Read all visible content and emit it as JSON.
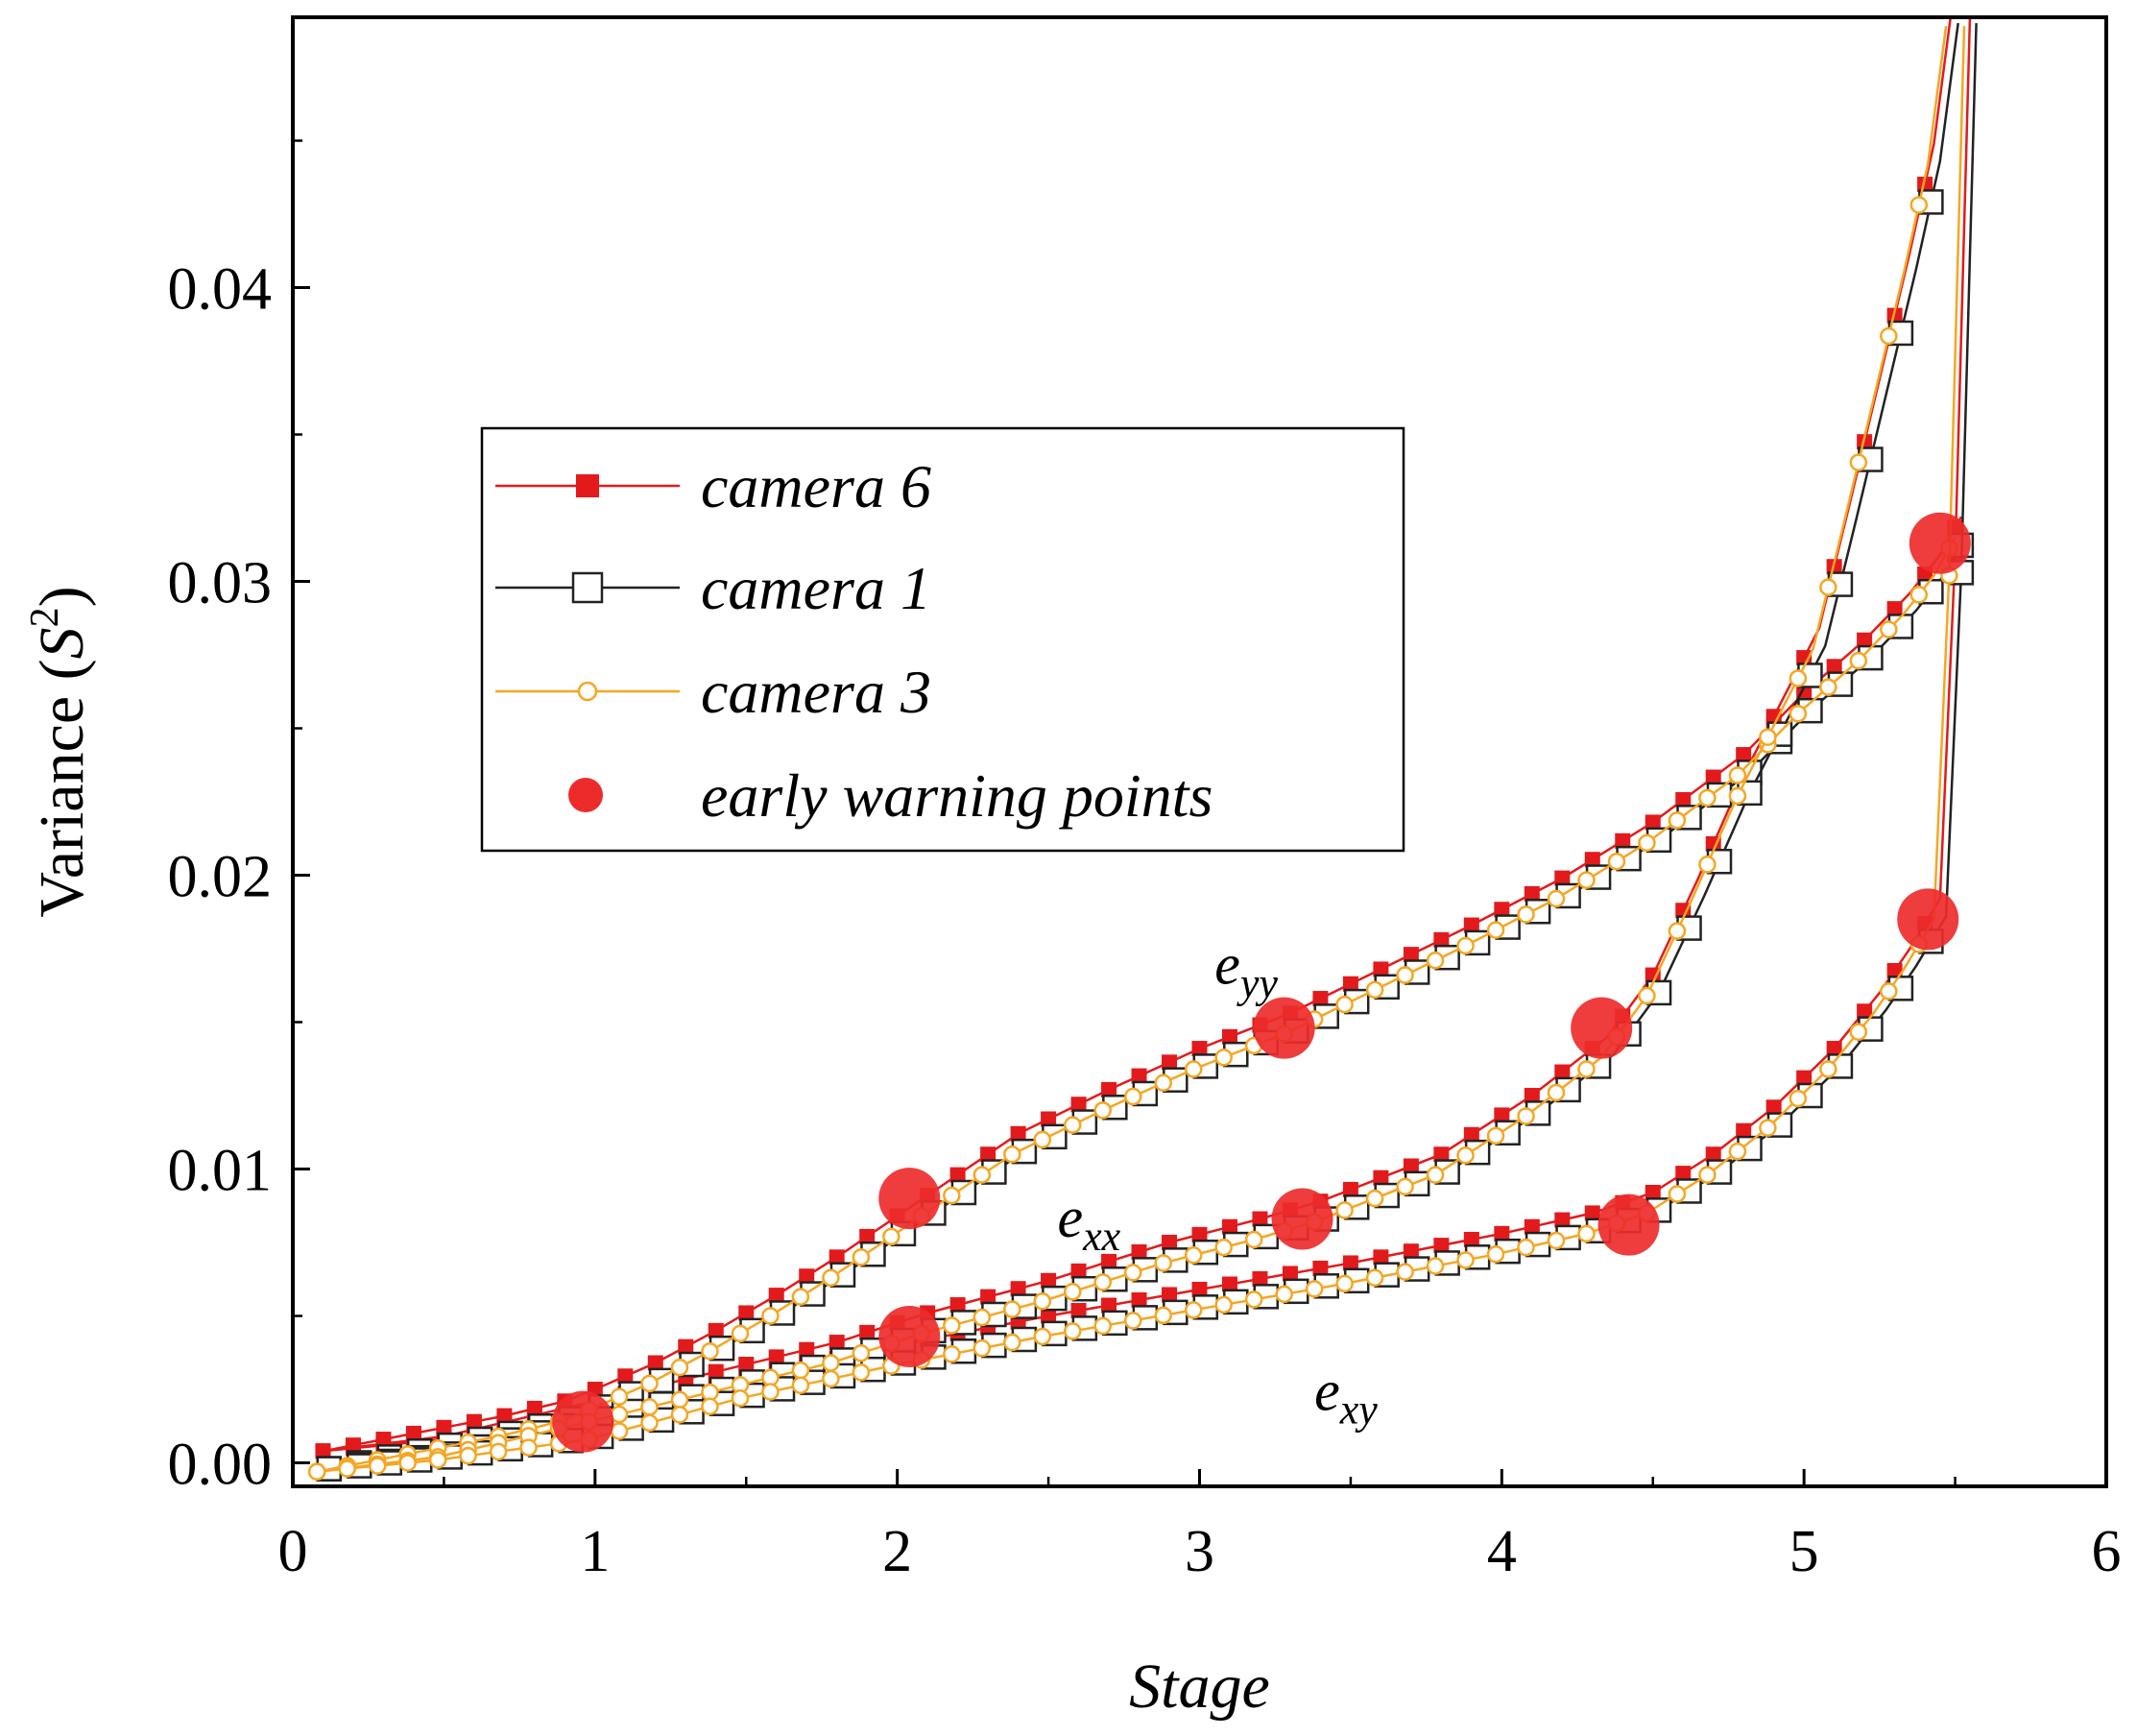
{
  "chart_data": {
    "type": "line",
    "xlabel": "Stage",
    "ylabel_prefix": "Variance (",
    "ylabel_symbol": "S",
    "ylabel_sup": "2",
    "ylabel_suffix": ")",
    "xlim": [
      0,
      6
    ],
    "ylim": [
      -0.0008,
      0.0492
    ],
    "x_ticks": [
      0,
      1,
      2,
      3,
      4,
      5,
      6
    ],
    "x_tick_labels": [
      "0",
      "1",
      "2",
      "3",
      "4",
      "5",
      "6"
    ],
    "y_ticks": [
      0,
      0.01,
      0.02,
      0.03,
      0.04
    ],
    "y_tick_labels": [
      "0.00",
      "0.01",
      "0.02",
      "0.03",
      "0.04"
    ],
    "grid": false,
    "legend_position": "upper-left",
    "annotations": [
      {
        "base": "e",
        "sub": "yy",
        "x": 3.05,
        "y": 0.0163
      },
      {
        "base": "e",
        "sub": "xx",
        "x": 2.53,
        "y": 0.0077
      },
      {
        "base": "e",
        "sub": "xy",
        "x": 3.38,
        "y": 0.0018
      }
    ],
    "series": [
      {
        "name": "camera 6",
        "color": "#e31a1c",
        "marker": "filled-square"
      },
      {
        "name": "camera 1",
        "color": "#222222",
        "marker": "open-square"
      },
      {
        "name": "camera 3",
        "color": "#f5a623",
        "marker": "open-circle"
      },
      {
        "name": "early warning points",
        "color": "#ee2b2b",
        "marker": "large-circle"
      }
    ],
    "curves": {
      "eyy": [
        [
          0.1,
          0
        ],
        [
          0.3,
          0.0004
        ],
        [
          0.5,
          0.0008
        ],
        [
          0.7,
          0.0012
        ],
        [
          0.9,
          0.0017
        ],
        [
          1.0,
          0.0021
        ],
        [
          1.2,
          0.003
        ],
        [
          1.4,
          0.0041
        ],
        [
          1.6,
          0.0053
        ],
        [
          1.8,
          0.0066
        ],
        [
          2.0,
          0.008
        ],
        [
          2.2,
          0.0094
        ],
        [
          2.4,
          0.0108
        ],
        [
          2.7,
          0.0123
        ],
        [
          3.0,
          0.0137
        ],
        [
          3.3,
          0.0149
        ],
        [
          3.6,
          0.0164
        ],
        [
          3.9,
          0.0179
        ],
        [
          4.2,
          0.0195
        ],
        [
          4.5,
          0.0214
        ],
        [
          4.8,
          0.0237
        ],
        [
          5.0,
          0.0258
        ],
        [
          5.2,
          0.0276
        ],
        [
          5.35,
          0.0292
        ],
        [
          5.45,
          0.0305
        ],
        [
          5.52,
          0.0318
        ]
      ],
      "exx": [
        [
          0.1,
          0
        ],
        [
          0.5,
          0.0005
        ],
        [
          1.0,
          0.0017
        ],
        [
          1.4,
          0.0027
        ],
        [
          1.8,
          0.0037
        ],
        [
          2.1,
          0.0047
        ],
        [
          2.5,
          0.0058
        ],
        [
          2.9,
          0.0071
        ],
        [
          3.2,
          0.0079
        ],
        [
          3.4,
          0.0085
        ],
        [
          3.8,
          0.0101
        ],
        [
          4.1,
          0.0121
        ],
        [
          4.35,
          0.0141
        ],
        [
          4.5,
          0.0162
        ],
        [
          4.65,
          0.0195
        ],
        [
          4.8,
          0.023
        ],
        [
          4.95,
          0.026
        ],
        [
          5.05,
          0.028
        ],
        [
          5.15,
          0.0322
        ],
        [
          5.25,
          0.0365
        ],
        [
          5.35,
          0.0408
        ],
        [
          5.43,
          0.0445
        ],
        [
          5.49,
          0.0492
        ]
      ],
      "exy": [
        [
          0.1,
          0
        ],
        [
          0.5,
          0.0004
        ],
        [
          1.0,
          0.0011
        ],
        [
          1.5,
          0.0025
        ],
        [
          2.0,
          0.0036
        ],
        [
          2.5,
          0.0046
        ],
        [
          3.0,
          0.0055
        ],
        [
          3.5,
          0.0064
        ],
        [
          4.0,
          0.0074
        ],
        [
          4.3,
          0.0081
        ],
        [
          4.5,
          0.0088
        ],
        [
          4.7,
          0.0101
        ],
        [
          4.9,
          0.0117
        ],
        [
          5.1,
          0.0137
        ],
        [
          5.25,
          0.0156
        ],
        [
          5.35,
          0.0171
        ],
        [
          5.45,
          0.0188
        ],
        [
          5.5,
          0.0305
        ],
        [
          5.55,
          0.0492
        ]
      ]
    },
    "warning_points": [
      {
        "x": 0.96,
        "y": 0.0014
      },
      {
        "x": 2.04,
        "y": 0.009
      },
      {
        "x": 2.04,
        "y": 0.0043
      },
      {
        "x": 3.28,
        "y": 0.0148
      },
      {
        "x": 3.34,
        "y": 0.0083
      },
      {
        "x": 4.33,
        "y": 0.0148
      },
      {
        "x": 4.42,
        "y": 0.0081
      },
      {
        "x": 5.41,
        "y": 0.0185
      },
      {
        "x": 5.45,
        "y": 0.0313
      }
    ]
  }
}
